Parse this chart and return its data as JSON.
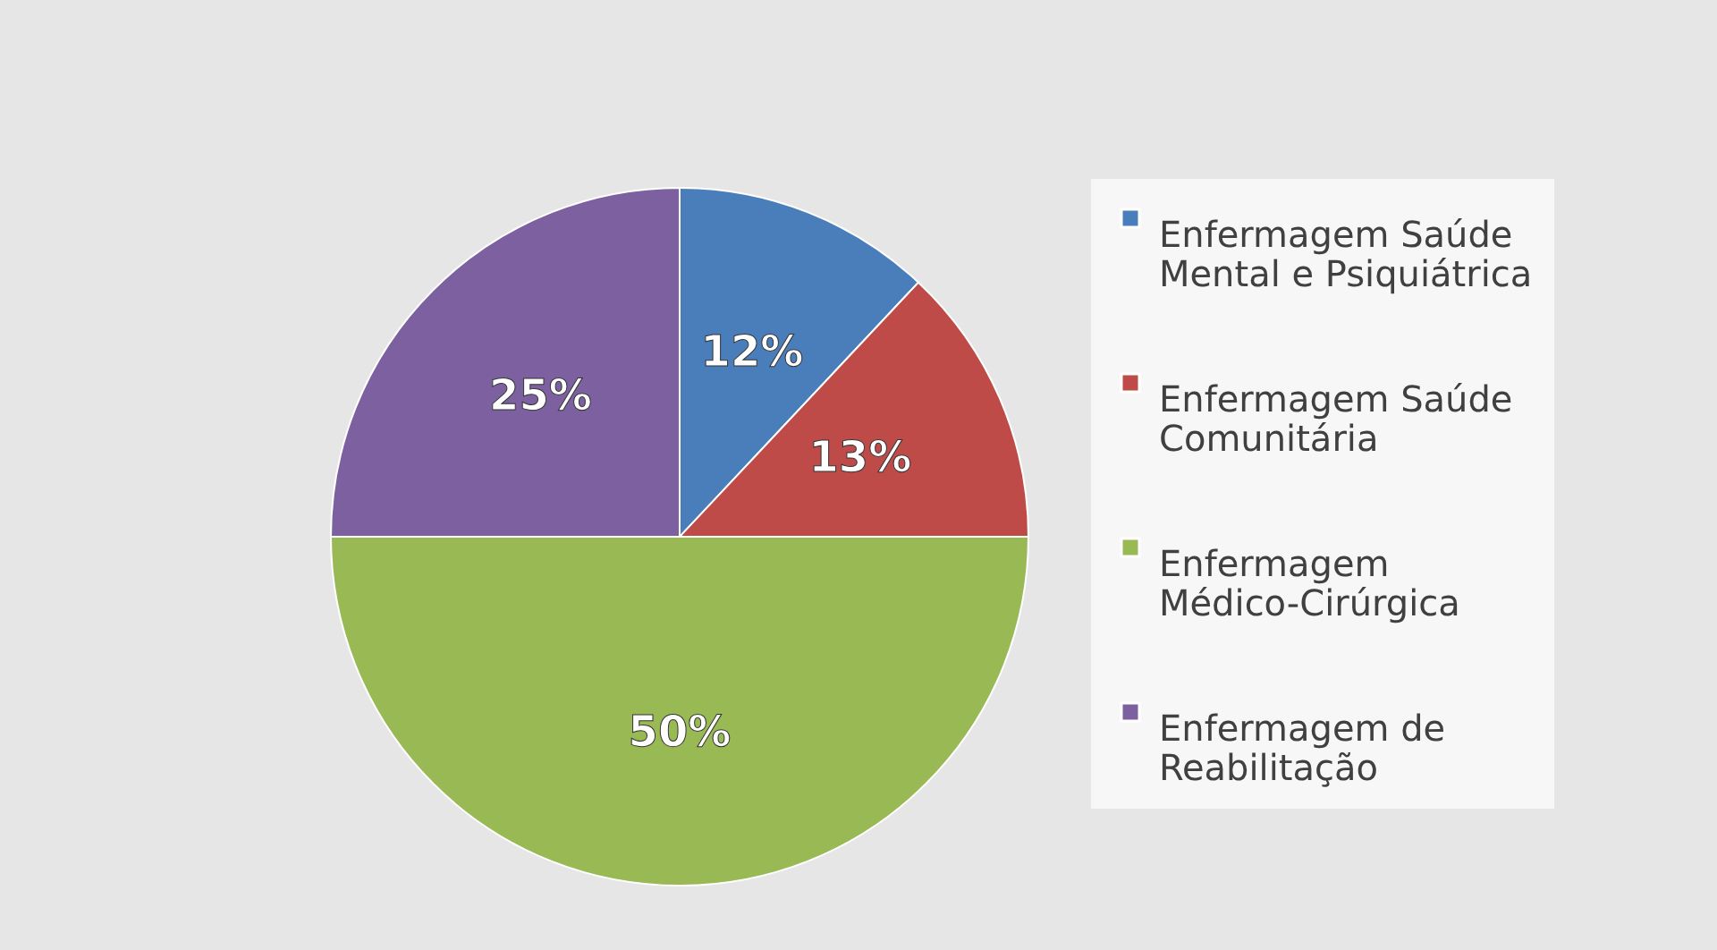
{
  "chart_data": {
    "type": "pie",
    "categories": [
      "Enfermagem Saúde Mental e Psiquiátrica",
      "Enfermagem Saúde Comunitária",
      "Enfermagem Médico-Cirúrgica",
      "Enfermagem de Reabilitação"
    ],
    "values": [
      12,
      13,
      50,
      25
    ],
    "colors": [
      "#4a7ebb",
      "#be4b48",
      "#98b954",
      "#7d60a0"
    ],
    "value_labels": [
      "12%",
      "13%",
      "50%",
      "25%"
    ],
    "legend": "right"
  }
}
